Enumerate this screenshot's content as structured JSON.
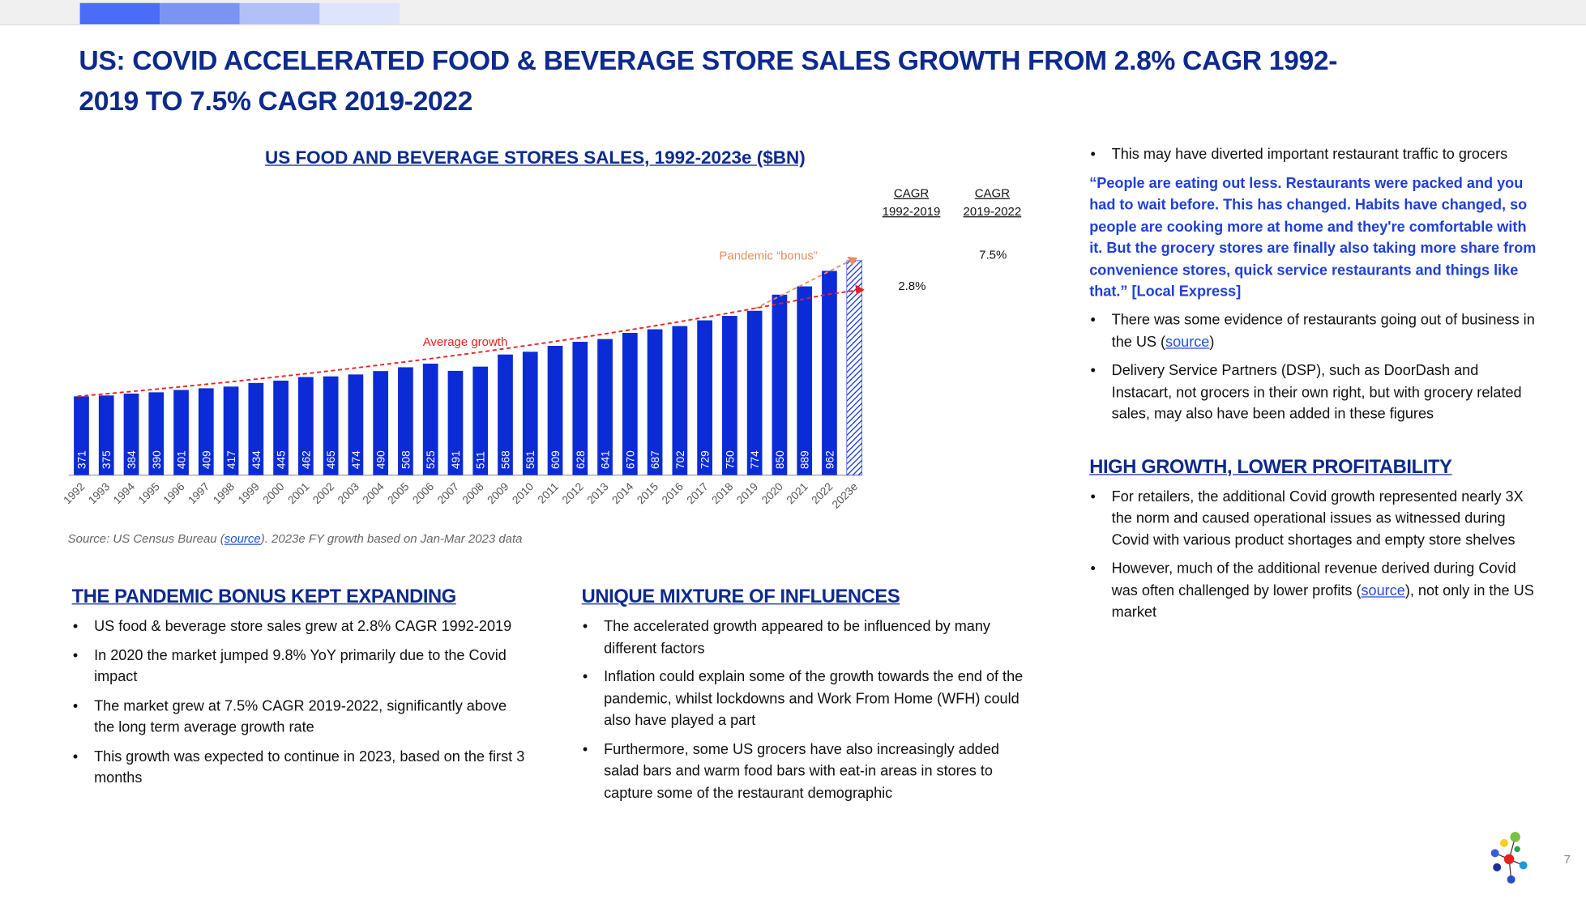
{
  "header": {
    "progress_colors": [
      "#4a6cf7",
      "#7b93f3",
      "#b3c0f7",
      "#dde4fb"
    ]
  },
  "title": "US: COVID ACCELERATED FOOD & BEVERAGE STORE SALES GROWTH FROM 2.8% CAGR 1992-2019 TO 7.5% CAGR 2019-2022",
  "chart_data": {
    "type": "bar",
    "title": "US FOOD AND BEVERAGE STORES SALES, 1992-2023e ($BN)",
    "categories": [
      "1992",
      "1993",
      "1994",
      "1995",
      "1996",
      "1997",
      "1998",
      "1999",
      "2000",
      "2001",
      "2002",
      "2003",
      "2004",
      "2005",
      "2006",
      "2007",
      "2008",
      "2009",
      "2010",
      "2011",
      "2012",
      "2013",
      "2014",
      "2015",
      "2016",
      "2017",
      "2018",
      "2019",
      "2020",
      "2021",
      "2022",
      "2023e"
    ],
    "values": [
      371,
      375,
      384,
      390,
      401,
      409,
      417,
      434,
      445,
      462,
      465,
      474,
      490,
      508,
      525,
      491,
      511,
      568,
      581,
      609,
      628,
      641,
      670,
      687,
      702,
      729,
      750,
      774,
      850,
      889,
      962,
      1010
    ],
    "labels_shown_for_last": false,
    "bar_color": "#0b2bd6",
    "estimate_style": "hatched",
    "annotations": {
      "average_growth": "Average growth",
      "pandemic_bonus": "Pandemic “bonus”"
    },
    "avg_line_color": "#e8201f",
    "bonus_line_color": "#f08a5d",
    "cagr_headers": [
      {
        "line1": "CAGR",
        "line2": "1992-2019",
        "value": "2.8%"
      },
      {
        "line1": "CAGR",
        "line2": "2019-2022",
        "value": "7.5%"
      }
    ]
  },
  "source": {
    "prefix": "Source: US Census Bureau (",
    "link": "source",
    "suffix": "). 2023e FY growth based on Jan-Mar 2023 data"
  },
  "left": {
    "heading": "THE PANDEMIC BONUS KEPT EXPANDING",
    "items": [
      "US food & beverage store sales grew at 2.8% CAGR 1992-2019",
      "In 2020 the market jumped 9.8% YoY primarily due to the Covid impact",
      "The market grew at 7.5% CAGR 2019-2022, significantly above the long term average growth rate",
      "This growth was expected to continue in 2023, based on the first 3 months"
    ]
  },
  "middle": {
    "heading": "UNIQUE MIXTURE OF INFLUENCES",
    "items": [
      "The accelerated growth appeared to be influenced by many different factors",
      "Inflation could explain some of the growth towards the end of the pandemic, whilst lockdowns and Work From Home (WFH) could also have played a part",
      "Furthermore, some US grocers have also increasingly added salad bars and warm food bars with eat-in areas in stores to capture some of the restaurant demographic"
    ]
  },
  "right": {
    "item1": "This may have diverted important restaurant traffic to grocers",
    "quote": "“People are eating out less. Restaurants were packed and you had to wait before. This has changed. Habits have changed, so people are cooking more at home and they're comfortable with it. But the grocery stores are finally also taking more share from convenience stores, quick service restaurants and things like that.” [Local Express]",
    "item2_prefix": "There was some evidence of restaurants going out of business in the US (",
    "item2_link": "source",
    "item2_suffix": ")",
    "item3": "Delivery Service Partners (DSP), such as DoorDash and Instacart, not grocers in their own right, but with grocery related sales, may also have been added in these figures",
    "heading": "HIGH GROWTH, LOWER PROFITABILITY",
    "item4": "For retailers, the additional Covid growth represented nearly 3X the norm and caused operational issues as witnessed during Covid with various product shortages and empty store shelves",
    "item5_prefix": "However, much of the additional revenue derived during Covid was often challenged by lower profits (",
    "item5_link": "source",
    "item5_suffix": "), not only in the US market"
  },
  "page_number": "7"
}
